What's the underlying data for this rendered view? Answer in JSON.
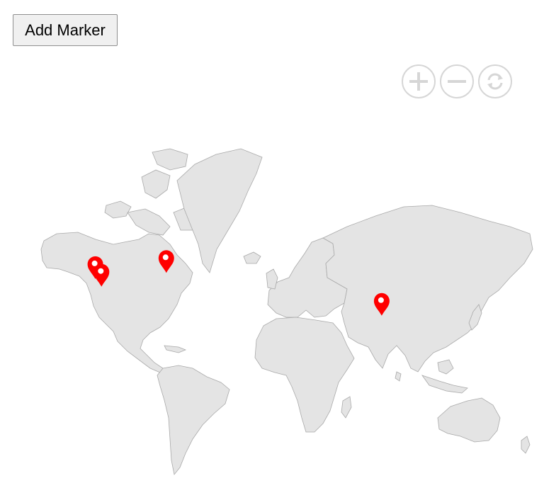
{
  "toolbar": {
    "add_marker_label": "Add Marker"
  },
  "zoom_controls": [
    {
      "name": "zoom-in",
      "icon": "plus-icon"
    },
    {
      "name": "zoom-out",
      "icon": "minus-icon"
    },
    {
      "name": "reset",
      "icon": "refresh-icon"
    }
  ],
  "map": {
    "land_color": "#e4e4e4",
    "border_color": "#a9a9a9",
    "marker_color": "#ff0000",
    "controls_color": "#d6d6d6",
    "markers": [
      {
        "lat": 37.8,
        "lon": -122.4
      },
      {
        "lat": 34.1,
        "lon": -118.2
      },
      {
        "lat": 40.7,
        "lon": -74.0
      },
      {
        "lat": 19.1,
        "lon": 72.9
      }
    ]
  }
}
